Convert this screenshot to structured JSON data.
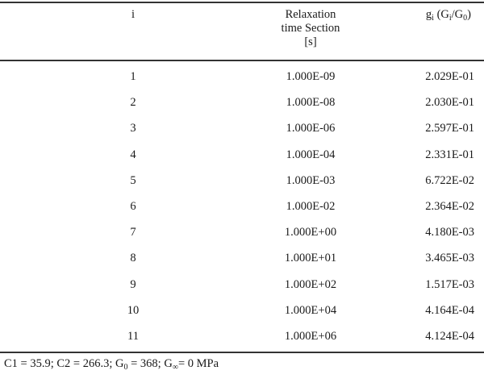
{
  "table": {
    "headers": {
      "index": "i",
      "relax_line1": "Relaxation",
      "relax_line2": "time Section",
      "relax_unit": "[s]",
      "g_main": "g",
      "g_sub": "i",
      "g_paren_open": " (G",
      "g_paren_sub_i": "i",
      "g_slash": "/G",
      "g_paren_sub_0": "0",
      "g_paren_close": ")"
    },
    "rows": [
      {
        "i": "1",
        "tau": "1.000E-09",
        "g": "2.029E-01"
      },
      {
        "i": "2",
        "tau": "1.000E-08",
        "g": "2.030E-01"
      },
      {
        "i": "3",
        "tau": "1.000E-06",
        "g": "2.597E-01"
      },
      {
        "i": "4",
        "tau": "1.000E-04",
        "g": "2.331E-01"
      },
      {
        "i": "5",
        "tau": "1.000E-03",
        "g": "6.722E-02"
      },
      {
        "i": "6",
        "tau": "1.000E-02",
        "g": "2.364E-02"
      },
      {
        "i": "7",
        "tau": "1.000E+00",
        "g": "4.180E-03"
      },
      {
        "i": "8",
        "tau": "1.000E+01",
        "g": "3.465E-03"
      },
      {
        "i": "9",
        "tau": "1.000E+02",
        "g": "1.517E-03"
      },
      {
        "i": "10",
        "tau": "1.000E+04",
        "g": "4.164E-04"
      },
      {
        "i": "11",
        "tau": "1.000E+06",
        "g": "4.124E-04"
      }
    ]
  },
  "footnote": {
    "part1": "C1 = 35.9; C2 = 266.3; G",
    "sub0": "0",
    "part2": " = 368; G",
    "subinf": "∞",
    "part3": "= 0 MPa"
  }
}
